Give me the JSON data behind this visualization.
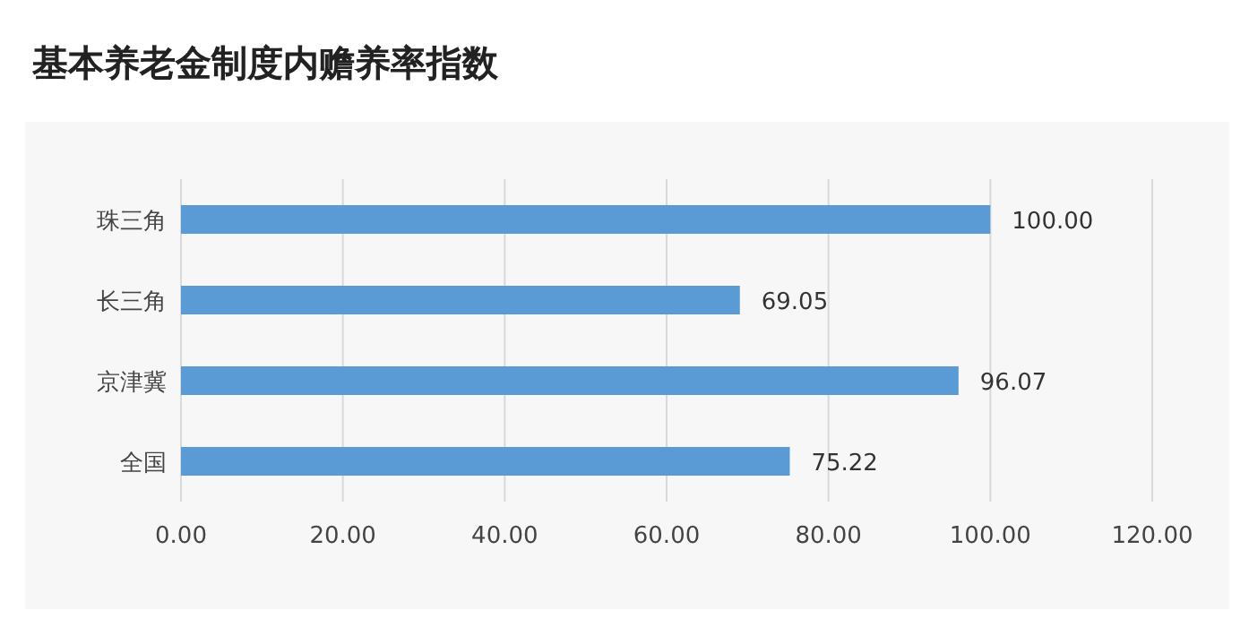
{
  "chart_data": {
    "type": "bar",
    "orientation": "horizontal",
    "title": "基本养老金制度内赡养率指数",
    "categories": [
      "珠三角",
      "长三角",
      "京津冀",
      "全国"
    ],
    "values": [
      100.0,
      69.05,
      96.07,
      75.22
    ],
    "value_labels": [
      "100.00",
      "69.05",
      "96.07",
      "75.22"
    ],
    "color": "#5b9bd5",
    "xlim": [
      0,
      120
    ],
    "xticks": [
      {
        "value": 0,
        "label": "0.00"
      },
      {
        "value": 20,
        "label": "20.00"
      },
      {
        "value": 40,
        "label": "40.00"
      },
      {
        "value": 60,
        "label": "60.00"
      },
      {
        "value": 80,
        "label": "80.00"
      },
      {
        "value": 100,
        "label": "100.00"
      },
      {
        "value": 120,
        "label": "120.00"
      }
    ],
    "grid": "x"
  }
}
